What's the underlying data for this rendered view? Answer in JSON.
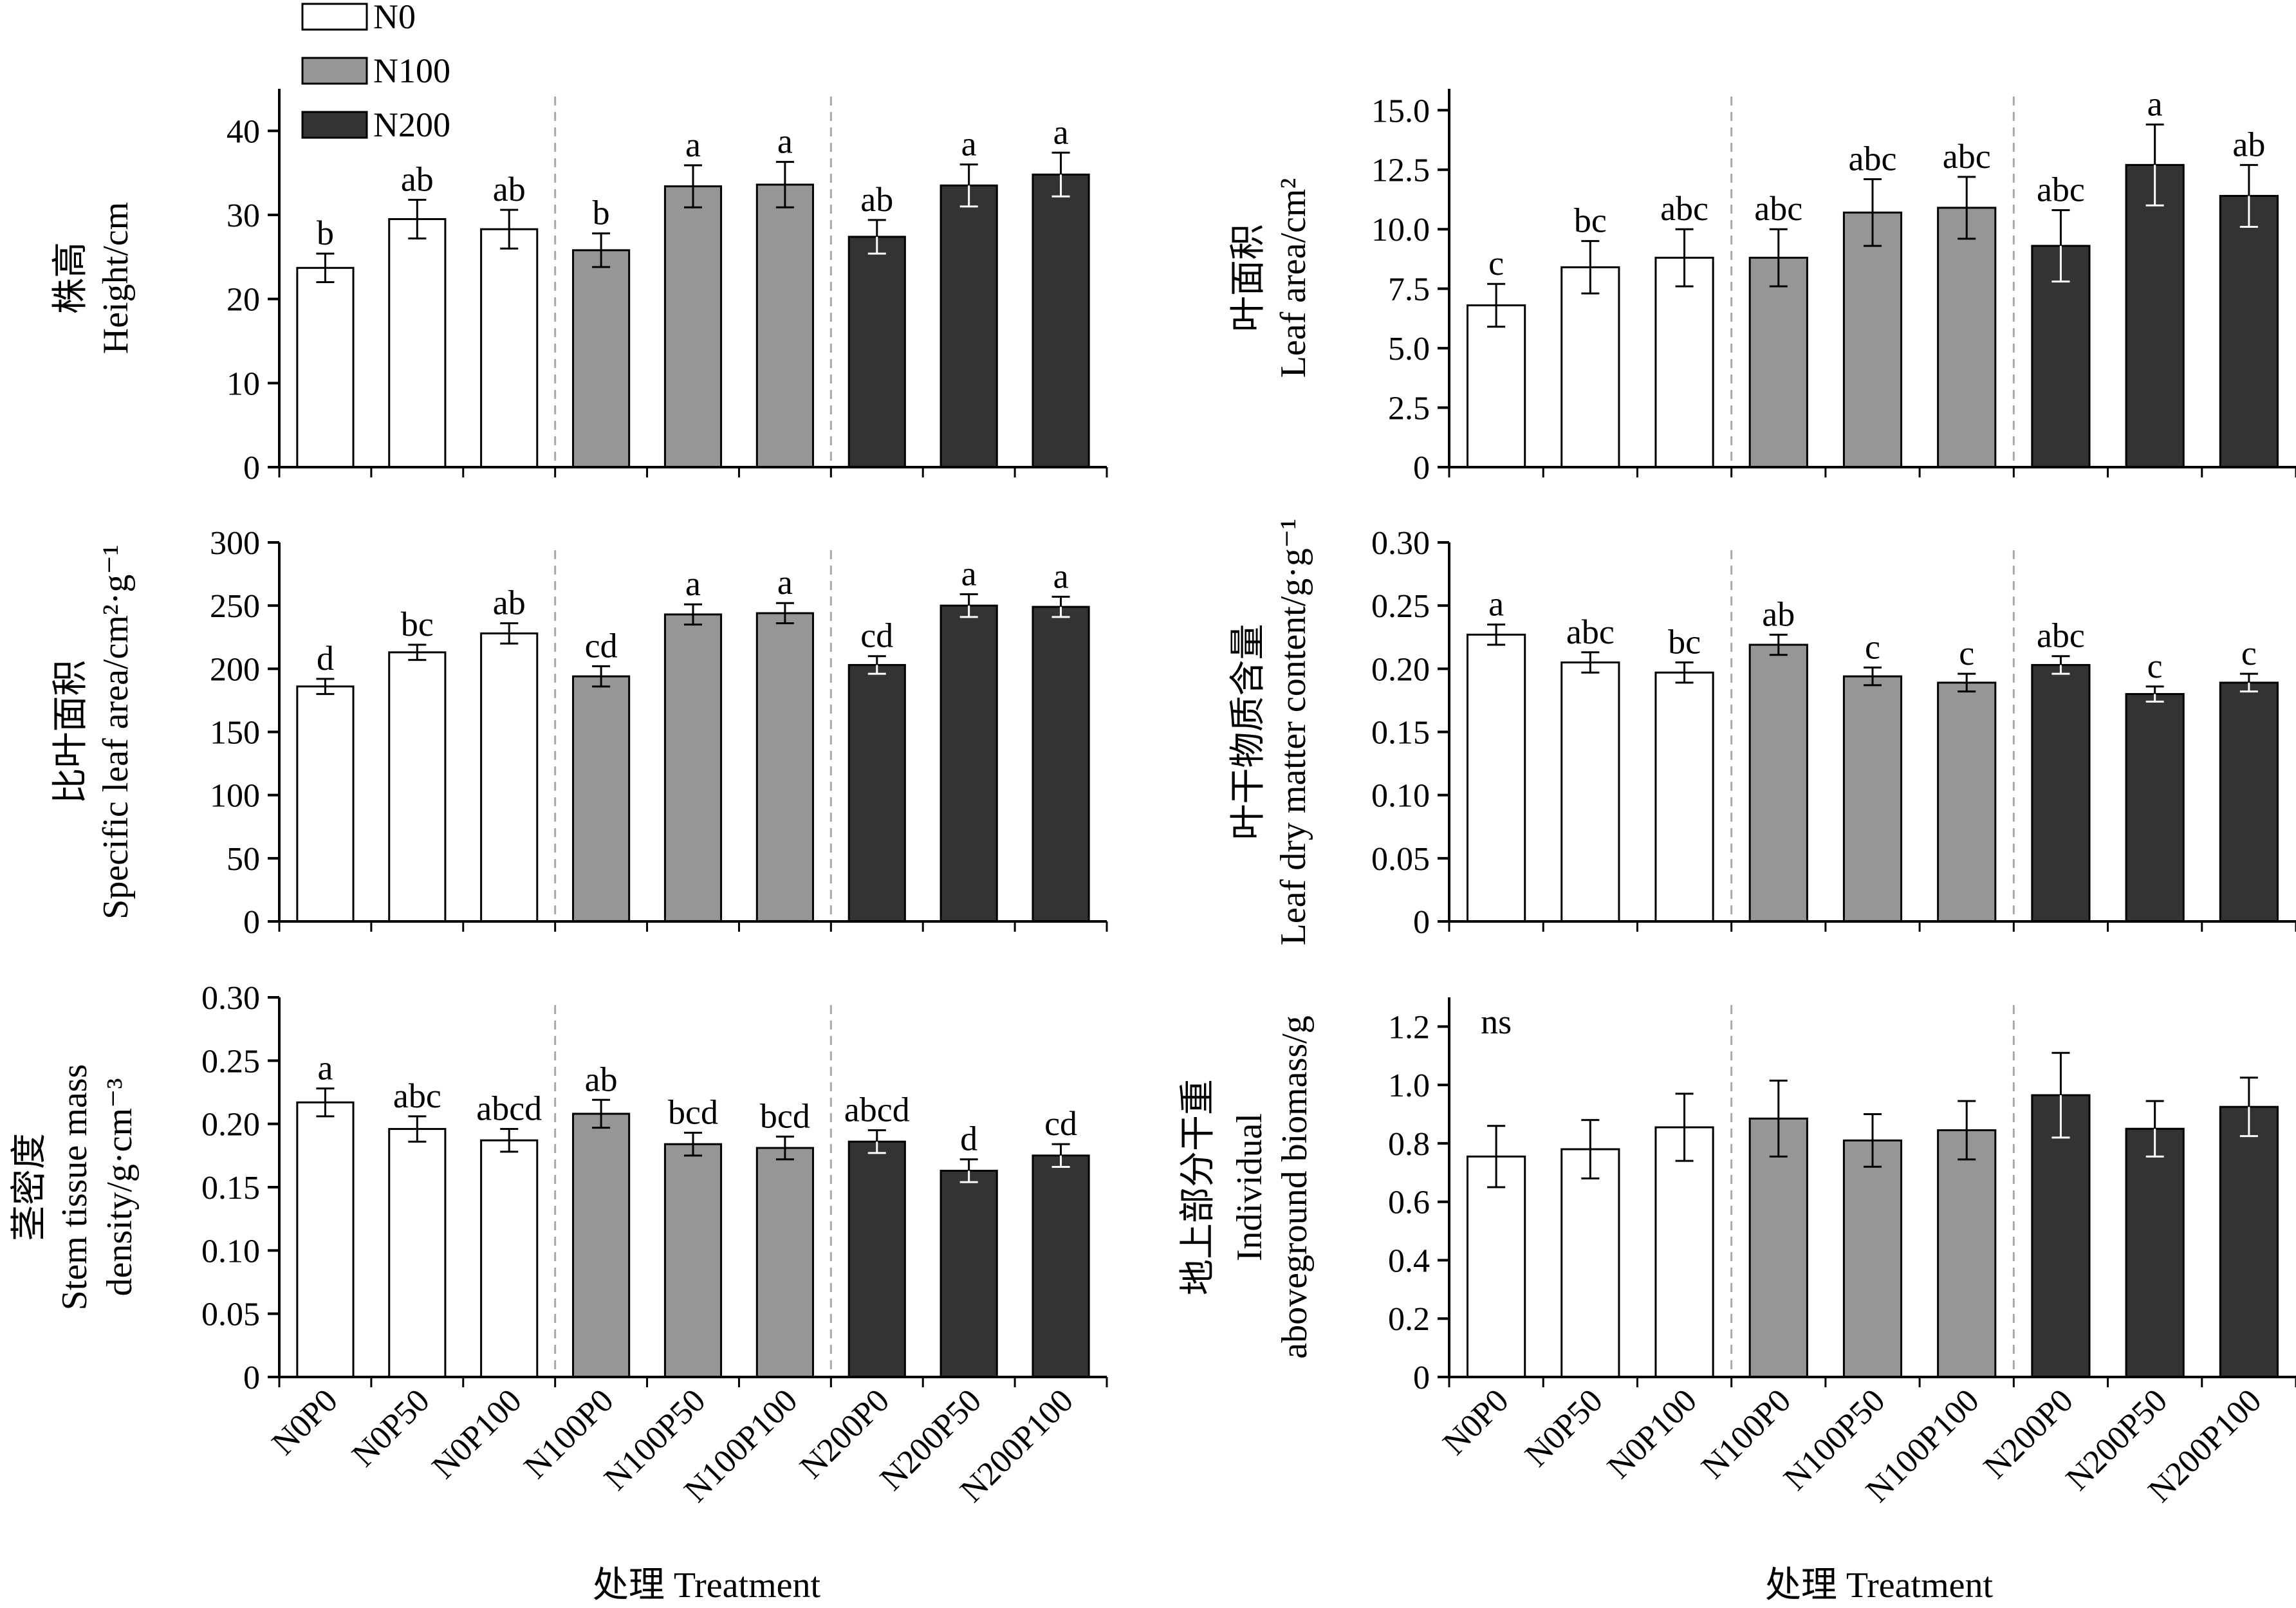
{
  "legend": {
    "items": [
      {
        "label": "N0",
        "color": "#ffffff"
      },
      {
        "label": "N100",
        "color": "#969696"
      },
      {
        "label": "N200",
        "color": "#333333"
      }
    ]
  },
  "colors": {
    "N0": "#ffffff",
    "N100": "#969696",
    "N200": "#333333",
    "divider": "#aaaaaa"
  },
  "x_axis_label": "处理 Treatment",
  "chart_data": [
    {
      "type": "bar",
      "id": "height",
      "ylabel_cn": "株高",
      "ylabel_en": "Height/cm",
      "ylim": [
        0,
        45
      ],
      "yticks": [
        "0",
        "10",
        "20",
        "30",
        "40"
      ],
      "ytick_values": [
        0,
        10,
        20,
        30,
        40
      ],
      "categories": [
        "N0P0",
        "N0P50",
        "N0P100",
        "N100P0",
        "N100P50",
        "N100P100",
        "N200P0",
        "N200P50",
        "N200P100"
      ],
      "values": [
        23.7,
        29.5,
        28.3,
        25.8,
        33.4,
        33.6,
        27.4,
        33.5,
        34.8
      ],
      "errors": [
        1.7,
        2.3,
        2.3,
        2.0,
        2.5,
        2.7,
        2.0,
        2.5,
        2.6
      ],
      "letters": [
        "b",
        "ab",
        "ab",
        "b",
        "a",
        "a",
        "ab",
        "a",
        "a"
      ]
    },
    {
      "type": "bar",
      "id": "leaf_area",
      "ylabel_cn": "叶面积",
      "ylabel_en": "Leaf area/cm²",
      "ylim": [
        0,
        15.9
      ],
      "yticks": [
        "0",
        "2.5",
        "5.0",
        "7.5",
        "10.0",
        "12.5",
        "15.0"
      ],
      "ytick_values": [
        0,
        2.5,
        5.0,
        7.5,
        10.0,
        12.5,
        15.0
      ],
      "categories": [
        "N0P0",
        "N0P50",
        "N0P100",
        "N100P0",
        "N100P50",
        "N100P100",
        "N200P0",
        "N200P50",
        "N200P100"
      ],
      "values": [
        6.8,
        8.4,
        8.8,
        8.8,
        10.7,
        10.9,
        9.3,
        12.7,
        11.4
      ],
      "errors": [
        0.9,
        1.1,
        1.2,
        1.2,
        1.4,
        1.3,
        1.5,
        1.7,
        1.3
      ],
      "letters": [
        "c",
        "bc",
        "abc",
        "abc",
        "abc",
        "abc",
        "abc",
        "a",
        "ab"
      ]
    },
    {
      "type": "bar",
      "id": "sla",
      "ylabel_cn": "比叶面积",
      "ylabel_en": "Specific leaf area/cm²·g⁻¹",
      "ylim": [
        0,
        300
      ],
      "yticks": [
        "0",
        "50",
        "100",
        "150",
        "200",
        "250",
        "300"
      ],
      "ytick_values": [
        0,
        50,
        100,
        150,
        200,
        250,
        300
      ],
      "categories": [
        "N0P0",
        "N0P50",
        "N0P100",
        "N100P0",
        "N100P50",
        "N100P100",
        "N200P0",
        "N200P50",
        "N200P100"
      ],
      "values": [
        186,
        213,
        228,
        194,
        243,
        244,
        203,
        250,
        249
      ],
      "errors": [
        6,
        6,
        8,
        8,
        8,
        8,
        7,
        9,
        8
      ],
      "letters": [
        "d",
        "bc",
        "ab",
        "cd",
        "a",
        "a",
        "cd",
        "a",
        "a"
      ]
    },
    {
      "type": "bar",
      "id": "ldmc",
      "ylabel_cn": "叶干物质含量",
      "ylabel_en": "Leaf dry matter content/g·g⁻¹",
      "ylim": [
        0,
        0.3
      ],
      "yticks": [
        "0",
        "0.05",
        "0.10",
        "0.15",
        "0.20",
        "0.25",
        "0.30"
      ],
      "ytick_values": [
        0,
        0.05,
        0.1,
        0.15,
        0.2,
        0.25,
        0.3
      ],
      "categories": [
        "N0P0",
        "N0P50",
        "N0P100",
        "N100P0",
        "N100P50",
        "N100P100",
        "N200P0",
        "N200P50",
        "N200P100"
      ],
      "values": [
        0.227,
        0.205,
        0.197,
        0.219,
        0.194,
        0.189,
        0.203,
        0.18,
        0.189
      ],
      "errors": [
        0.008,
        0.008,
        0.008,
        0.008,
        0.007,
        0.007,
        0.007,
        0.006,
        0.007
      ],
      "letters": [
        "a",
        "abc",
        "bc",
        "ab",
        "c",
        "c",
        "abc",
        "c",
        "c"
      ]
    },
    {
      "type": "bar",
      "id": "stmd",
      "ylabel_cn": "茎密度",
      "ylabel_en": "Stem tissue mass",
      "ylabel_en2": "density/g·cm⁻³",
      "ylim": [
        0,
        0.3
      ],
      "yticks": [
        "0",
        "0.05",
        "0.10",
        "0.15",
        "0.20",
        "0.25",
        "0.30"
      ],
      "ytick_values": [
        0,
        0.05,
        0.1,
        0.15,
        0.2,
        0.25,
        0.3
      ],
      "categories": [
        "N0P0",
        "N0P50",
        "N0P100",
        "N100P0",
        "N100P50",
        "N100P100",
        "N200P0",
        "N200P50",
        "N200P100"
      ],
      "values": [
        0.217,
        0.196,
        0.187,
        0.208,
        0.184,
        0.181,
        0.186,
        0.163,
        0.175
      ],
      "errors": [
        0.011,
        0.01,
        0.009,
        0.011,
        0.009,
        0.009,
        0.009,
        0.009,
        0.009
      ],
      "letters": [
        "a",
        "abc",
        "abcd",
        "ab",
        "bcd",
        "bcd",
        "abcd",
        "d",
        "cd"
      ]
    },
    {
      "type": "bar",
      "id": "biomass",
      "ylabel_cn": "地上部分干重",
      "ylabel_en": "Individual",
      "ylabel_en2": "aboveground biomass/g",
      "ylim": [
        0,
        1.3
      ],
      "yticks": [
        "0",
        "0.2",
        "0.4",
        "0.6",
        "0.8",
        "1.0",
        "1.2"
      ],
      "ytick_values": [
        0,
        0.2,
        0.4,
        0.6,
        0.8,
        1.0,
        1.2
      ],
      "categories": [
        "N0P0",
        "N0P50",
        "N0P100",
        "N100P0",
        "N100P50",
        "N100P100",
        "N200P0",
        "N200P50",
        "N200P100"
      ],
      "values": [
        0.755,
        0.78,
        0.855,
        0.885,
        0.81,
        0.845,
        0.965,
        0.85,
        0.925
      ],
      "errors": [
        0.105,
        0.1,
        0.115,
        0.13,
        0.09,
        0.1,
        0.145,
        0.095,
        0.1
      ],
      "letters": [],
      "annotation": "ns"
    }
  ]
}
